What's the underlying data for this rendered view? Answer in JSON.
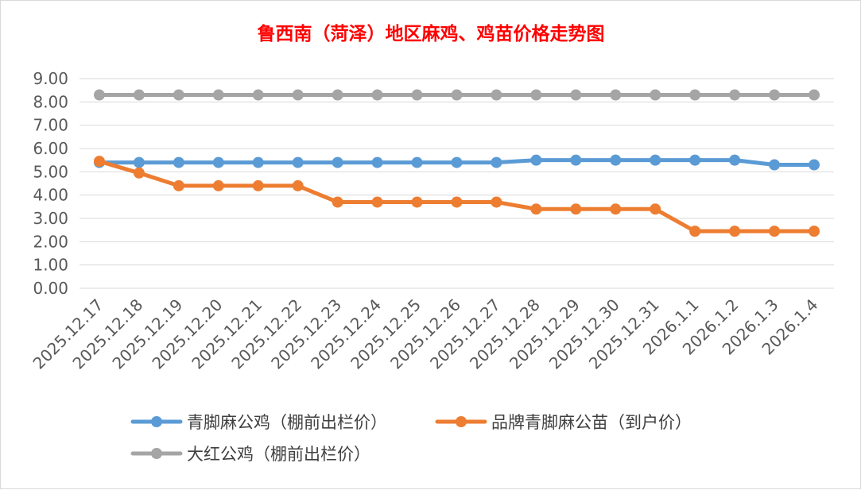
{
  "chart_data": {
    "type": "line",
    "title": "鲁西南（菏泽）地区麻鸡、鸡苗价格走势图",
    "categories": [
      "2025.12.17",
      "2025.12.18",
      "2025.12.19",
      "2025.12.20",
      "2025.12.21",
      "2025.12.22",
      "2025.12.23",
      "2025.12.24",
      "2025.12.25",
      "2025.12.26",
      "2025.12.27",
      "2025.12.28",
      "2025.12.29",
      "2025.12.30",
      "2025.12.31",
      "2026.1.1",
      "2026.1.2",
      "2026.1.3",
      "2026.1.4"
    ],
    "y_ticks": [
      "0.00",
      "1.00",
      "2.00",
      "3.00",
      "4.00",
      "5.00",
      "6.00",
      "7.00",
      "8.00",
      "9.00"
    ],
    "ylim": [
      0,
      9
    ],
    "grid": true,
    "legend_position": "bottom",
    "series": [
      {
        "name": "青脚麻公鸡（棚前出栏价）",
        "color": "#5b9bd5",
        "values": [
          5.4,
          5.4,
          5.4,
          5.4,
          5.4,
          5.4,
          5.4,
          5.4,
          5.4,
          5.4,
          5.4,
          5.5,
          5.5,
          5.5,
          5.5,
          5.5,
          5.5,
          5.3,
          5.3
        ]
      },
      {
        "name": "品牌青脚麻公苗（到户价）",
        "color": "#ed7d31",
        "values": [
          5.45,
          4.95,
          4.4,
          4.4,
          4.4,
          4.4,
          3.7,
          3.7,
          3.7,
          3.7,
          3.7,
          3.4,
          3.4,
          3.4,
          3.4,
          2.45,
          2.45,
          2.45,
          2.45
        ]
      },
      {
        "name": "大红公鸡（棚前出栏价）",
        "color": "#a5a5a5",
        "values": [
          8.3,
          8.3,
          8.3,
          8.3,
          8.3,
          8.3,
          8.3,
          8.3,
          8.3,
          8.3,
          8.3,
          8.3,
          8.3,
          8.3,
          8.3,
          8.3,
          8.3,
          8.3,
          8.3
        ]
      }
    ]
  }
}
